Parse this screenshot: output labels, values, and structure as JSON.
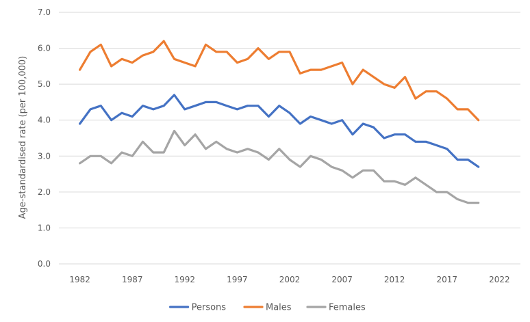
{
  "chart_data": {
    "type": "line",
    "title": "",
    "xlabel": "",
    "ylabel": "Age-standardised rate (per 100,000)",
    "xlim": [
      1980,
      2024
    ],
    "ylim": [
      0,
      7
    ],
    "x_ticks": [
      1982,
      1987,
      1992,
      1997,
      2002,
      2007,
      2012,
      2017,
      2022
    ],
    "y_ticks": [
      "0.0",
      "1.0",
      "2.0",
      "3.0",
      "4.0",
      "5.0",
      "6.0",
      "7.0"
    ],
    "grid": "horizontal",
    "legend_position": "bottom",
    "x": [
      1982,
      1983,
      1984,
      1985,
      1986,
      1987,
      1988,
      1989,
      1990,
      1991,
      1992,
      1993,
      1994,
      1995,
      1996,
      1997,
      1998,
      1999,
      2000,
      2001,
      2002,
      2003,
      2004,
      2005,
      2006,
      2007,
      2008,
      2009,
      2010,
      2011,
      2012,
      2013,
      2014,
      2015,
      2016,
      2017,
      2018,
      2019,
      2020
    ],
    "series": [
      {
        "name": "Persons",
        "color": "#4472C4",
        "values": [
          3.9,
          4.3,
          4.4,
          4.0,
          4.2,
          4.1,
          4.4,
          4.3,
          4.4,
          4.7,
          4.3,
          4.4,
          4.5,
          4.5,
          4.4,
          4.3,
          4.4,
          4.4,
          4.1,
          4.4,
          4.2,
          3.9,
          4.1,
          4.0,
          3.9,
          4.0,
          3.6,
          3.9,
          3.8,
          3.5,
          3.6,
          3.6,
          3.4,
          3.4,
          3.3,
          3.2,
          2.9,
          2.9,
          2.7
        ]
      },
      {
        "name": "Males",
        "color": "#ED7D31",
        "values": [
          5.4,
          5.9,
          6.1,
          5.5,
          5.7,
          5.6,
          5.8,
          5.9,
          6.2,
          5.7,
          5.6,
          5.5,
          6.1,
          5.9,
          5.9,
          5.6,
          5.7,
          6.0,
          5.7,
          5.9,
          5.9,
          5.3,
          5.4,
          5.4,
          5.5,
          5.6,
          5.0,
          5.4,
          5.2,
          5.0,
          4.9,
          5.2,
          4.6,
          4.8,
          4.8,
          4.6,
          4.3,
          4.3,
          4.0
        ]
      },
      {
        "name": "Females",
        "color": "#A5A5A5",
        "values": [
          2.8,
          3.0,
          3.0,
          2.8,
          3.1,
          3.0,
          3.4,
          3.1,
          3.1,
          3.7,
          3.3,
          3.6,
          3.2,
          3.4,
          3.2,
          3.1,
          3.2,
          3.1,
          2.9,
          3.2,
          2.9,
          2.7,
          3.0,
          2.9,
          2.7,
          2.6,
          2.4,
          2.6,
          2.6,
          2.3,
          2.3,
          2.2,
          2.4,
          2.2,
          2.0,
          2.0,
          1.8,
          1.7,
          1.7
        ]
      }
    ]
  }
}
